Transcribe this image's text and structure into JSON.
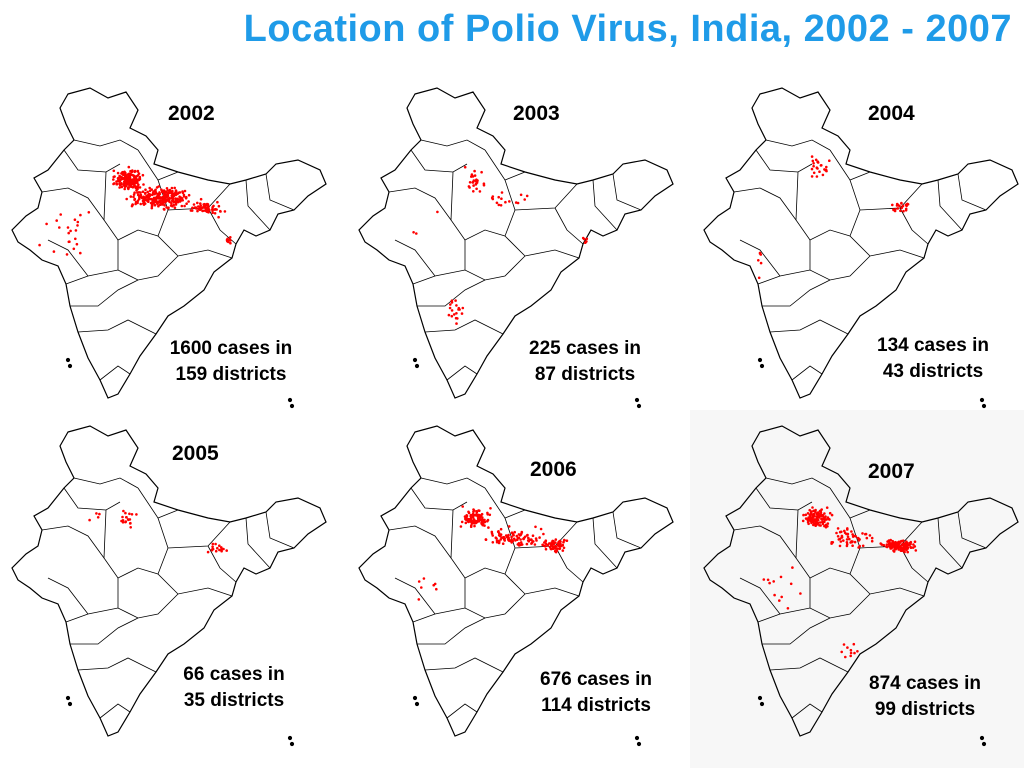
{
  "title": "Location of Polio Virus, India, 2002 - 2007",
  "colors": {
    "title": "#1f9be8",
    "case_dot": "#ff0000",
    "outline": "#000000"
  },
  "panels": [
    {
      "year": "2002",
      "caption_line1": "1600 cases in",
      "caption_line2": "159 districts",
      "cases": 1600,
      "districts": 159
    },
    {
      "year": "2003",
      "caption_line1": "225 cases in",
      "caption_line2": "87 districts",
      "cases": 225,
      "districts": 87
    },
    {
      "year": "2004",
      "caption_line1": "134 cases in",
      "caption_line2": "43 districts",
      "cases": 134,
      "districts": 43
    },
    {
      "year": "2005",
      "caption_line1": "66 cases in",
      "caption_line2": "35 districts",
      "cases": 66,
      "districts": 35
    },
    {
      "year": "2006",
      "caption_line1": "676 cases in",
      "caption_line2": "114 districts",
      "cases": 676,
      "districts": 114
    },
    {
      "year": "2007",
      "caption_line1": "874 cases in",
      "caption_line2": "99 districts",
      "cases": 874,
      "districts": 99
    }
  ]
}
